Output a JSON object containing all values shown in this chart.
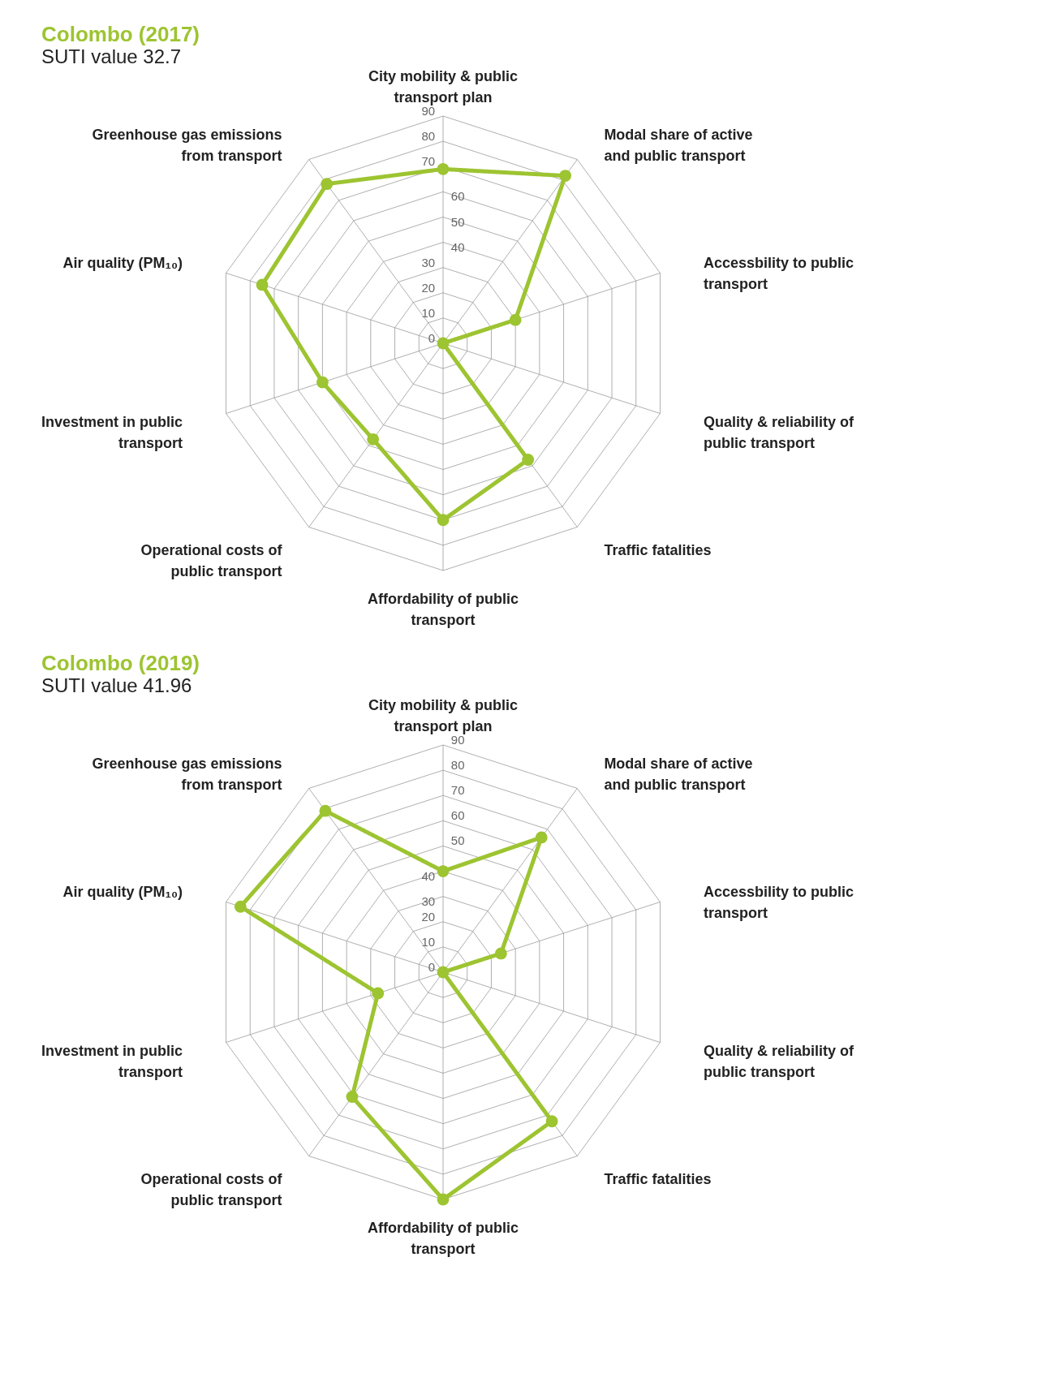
{
  "chart_data": [
    {
      "type": "radar",
      "title": "Colombo (2017)",
      "subtitle": "SUTI value 32.7",
      "categories": [
        "City mobility & public transport plan",
        "Modal share of active and public transport",
        "Accessbility to public transport",
        "Quality & reliability of public transport",
        "Traffic fatalities",
        "Affordability of public transport",
        "Operational costs of public transport",
        "Investment in public transport",
        "Air quality (PM₁₀)",
        "Greenhouse gas emissions from transport"
      ],
      "series": [
        {
          "color": "#9dc431",
          "values": [
            69,
            82,
            30,
            0,
            57,
            70,
            47,
            50,
            75,
            78
          ]
        }
      ],
      "ylim": [
        0,
        90
      ],
      "yticks": [
        0,
        10,
        20,
        30,
        40,
        50,
        60,
        70,
        80,
        90
      ],
      "grid": true,
      "marker": "circle",
      "line_style": "solid"
    },
    {
      "type": "radar",
      "title": "Colombo (2019)",
      "subtitle": "SUTI value 41.96",
      "categories": [
        "City mobility & public transport plan",
        "Modal share of active and public transport",
        "Accessbility to public transport",
        "Quality & reliability of public transport",
        "Traffic fatalities",
        "Affordability of public transport",
        "Operational costs of public transport",
        "Investment in public transport",
        "Air quality (PM₁₀)",
        "Greenhouse gas emissions from transport"
      ],
      "series": [
        {
          "color": "#9dc431",
          "values": [
            40,
            66,
            24,
            0,
            73,
            90,
            61,
            27,
            84,
            79
          ]
        }
      ],
      "ylim": [
        0,
        90
      ],
      "yticks": [
        0,
        10,
        20,
        30,
        40,
        50,
        60,
        70,
        80,
        90
      ],
      "grid": true,
      "marker": "circle",
      "line_style": "solid"
    }
  ]
}
